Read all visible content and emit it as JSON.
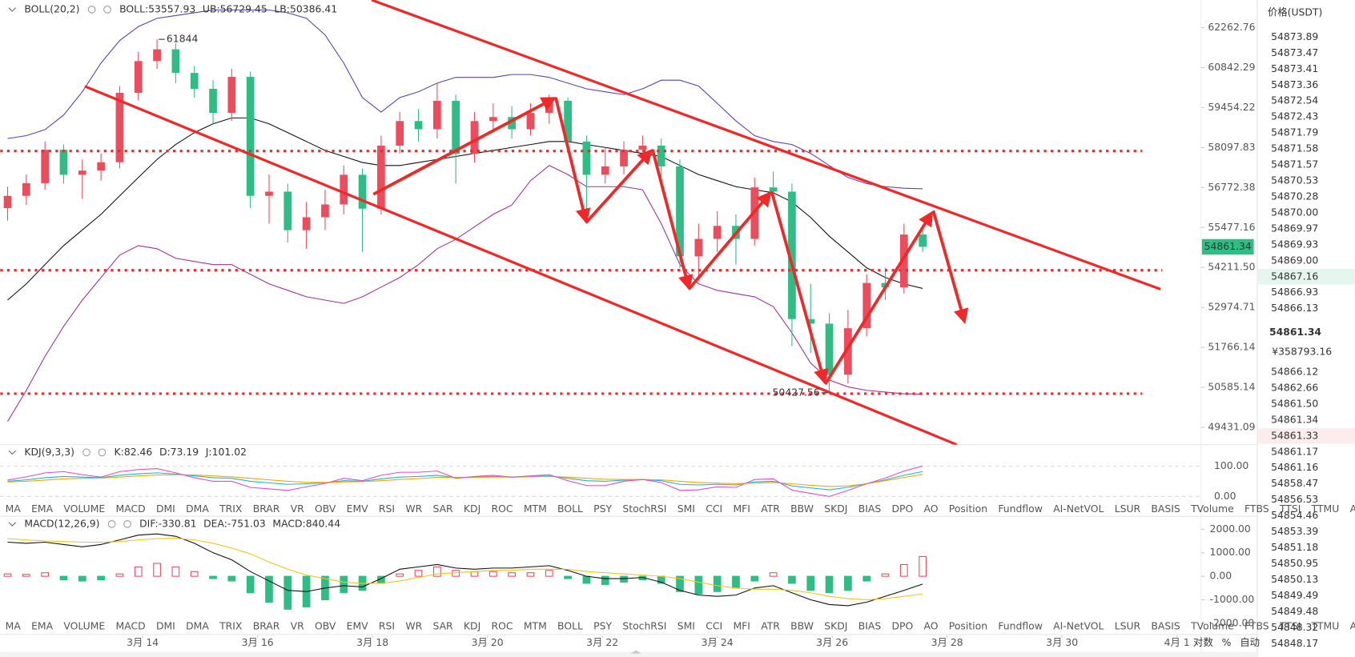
{
  "chart_data": [
    {
      "type": "candlestick",
      "indicator": "BOLL(20,2)",
      "x": [
        11.65,
        11.975,
        12.3,
        12.625,
        12.95,
        13.275,
        13.6,
        13.925,
        14.25,
        14.575,
        14.9,
        15.225,
        15.55,
        15.875,
        16.2,
        16.525,
        16.85,
        17.175,
        17.5,
        17.825,
        18.15,
        18.475,
        18.8,
        19.125,
        19.45,
        19.775,
        20.1,
        20.425,
        20.75,
        21.075,
        21.4,
        21.725,
        22.05,
        22.375,
        22.7,
        23.025,
        23.35,
        23.675,
        24.0,
        24.325,
        24.65,
        24.975,
        25.3,
        25.625,
        25.95,
        26.275,
        26.6,
        26.925,
        27.25,
        27.575
      ],
      "open": [
        56100,
        56500,
        56915,
        58023,
        57192,
        57330,
        57607,
        59963,
        61071,
        61487,
        60656,
        60101,
        59270,
        60517,
        56500,
        56638,
        55391,
        55806,
        56222,
        57192,
        56083,
        58162,
        58993,
        58716,
        59686,
        57884,
        58993,
        59131,
        58716,
        59270,
        59686,
        58300,
        57192,
        57469,
        58023,
        58162,
        57469,
        54559,
        55113,
        55529,
        55113,
        56776,
        56638,
        52620,
        52481,
        50957,
        52343,
        53728,
        53590,
        55252
      ],
      "high": [
        56800,
        57200,
        58300,
        58200,
        57700,
        57900,
        60200,
        61400,
        61844,
        61700,
        60900,
        60400,
        60800,
        60700,
        57200,
        56900,
        56300,
        56700,
        57500,
        57400,
        58500,
        59300,
        59400,
        60300,
        59900,
        59300,
        59600,
        59500,
        59600,
        59900,
        59800,
        58500,
        58100,
        58300,
        58500,
        58400,
        57700,
        55600,
        56000,
        55900,
        57100,
        57300,
        56900,
        53700,
        52800,
        52900,
        54000,
        54200,
        55600,
        55500
      ],
      "low": [
        55700,
        56200,
        56700,
        56900,
        56400,
        57000,
        57400,
        59700,
        60800,
        60300,
        59800,
        58900,
        59000,
        56100,
        55600,
        55000,
        54800,
        55400,
        55900,
        54700,
        55900,
        57900,
        58300,
        58400,
        56900,
        57600,
        58700,
        58400,
        58500,
        58900,
        58000,
        55800,
        56900,
        57200,
        57600,
        57100,
        54200,
        53800,
        54700,
        54300,
        54900,
        56300,
        51800,
        51600,
        50427.56,
        50700,
        52100,
        53200,
        53400,
        54700
      ],
      "close": [
        56500,
        56915,
        58023,
        57192,
        57330,
        57607,
        59963,
        61071,
        61487,
        60656,
        60101,
        59270,
        60517,
        56500,
        56638,
        55391,
        55806,
        56222,
        57192,
        56083,
        58162,
        58993,
        58716,
        59686,
        57884,
        58993,
        59131,
        58716,
        59270,
        59686,
        58300,
        57192,
        57469,
        58023,
        58162,
        57469,
        54559,
        55113,
        55529,
        55113,
        56776,
        56638,
        52620,
        52481,
        50957,
        52343,
        53728,
        53590,
        55252,
        54861.34
      ],
      "up_color": "#eb4d5c",
      "down_color": "#2ebd85",
      "series": [
        {
          "name": "BOLL:53557.93",
          "color": "#111111",
          "values": [
            53200,
            53700,
            54300,
            54900,
            55400,
            55900,
            56500,
            57100,
            57700,
            58200,
            58600,
            58900,
            59100,
            59100,
            58900,
            58600,
            58300,
            58000,
            57800,
            57600,
            57500,
            57500,
            57600,
            57700,
            57800,
            57900,
            58000,
            58100,
            58200,
            58300,
            58300,
            58200,
            58100,
            58000,
            57900,
            57800,
            57500,
            57200,
            57000,
            56800,
            56700,
            56600,
            56300,
            55800,
            55200,
            54700,
            54200,
            53900,
            53700,
            53557.93
          ]
        },
        {
          "name": "UB:56729.45",
          "color": "#5b3fb8",
          "values": [
            58400,
            58500,
            58700,
            59200,
            60000,
            61000,
            61800,
            62300,
            62600,
            62700,
            62800,
            62900,
            62900,
            62900,
            62900,
            62800,
            62600,
            62000,
            61000,
            59800,
            59300,
            59800,
            60000,
            60300,
            60500,
            60500,
            60500,
            60600,
            60600,
            60500,
            60300,
            60100,
            60000,
            59900,
            60100,
            60400,
            60400,
            60200,
            59600,
            59000,
            58500,
            58300,
            58200,
            57900,
            57500,
            57100,
            56900,
            56800,
            56750,
            56729.45
          ]
        },
        {
          "name": "LB:50386.41",
          "color": "#a3329a",
          "values": [
            49600,
            50500,
            51500,
            52400,
            53200,
            53900,
            54600,
            54900,
            54800,
            54500,
            54400,
            54300,
            54300,
            54000,
            53700,
            53500,
            53300,
            53200,
            53100,
            53300,
            53600,
            53900,
            54300,
            54800,
            55100,
            55500,
            55900,
            56200,
            57000,
            57500,
            57200,
            56800,
            56800,
            56800,
            56700,
            55600,
            54300,
            53700,
            53500,
            53400,
            53300,
            53000,
            52200,
            51300,
            50800,
            50600,
            50500,
            50450,
            50400,
            50386.41
          ]
        }
      ],
      "xlim": [
        11.52,
        32.42
      ],
      "ylim": [
        48941,
        63264
      ],
      "log": true,
      "yticks": [
        62262.76,
        60842.29,
        59454.22,
        58097.83,
        56772.38,
        55477.16,
        {
          "value": 54211.5,
          "label": "54211.50"
        },
        52974.71,
        51766.14,
        50585.14,
        49431.09
      ],
      "xticks": [
        {
          "value": 14,
          "label": "3月 14"
        },
        {
          "value": 16,
          "label": "3月 16"
        },
        {
          "value": 18,
          "label": "3月 18"
        },
        {
          "value": 20,
          "label": "3月 20"
        },
        {
          "value": 22,
          "label": "3月 22"
        },
        {
          "value": 24,
          "label": "3月 24"
        },
        {
          "value": 26,
          "label": "3月 26"
        },
        {
          "value": 28,
          "label": "3月 28"
        },
        {
          "value": 30,
          "label": "3月 30"
        },
        {
          "value": 32,
          "label": "4月 1"
        }
      ],
      "levels": [
        57980,
        54124,
        50402
      ],
      "level_color": "#f02828"
    },
    {
      "type": "line",
      "indicator": "KDJ(9,3,3)",
      "x": [
        11.65,
        11.975,
        12.3,
        12.625,
        12.95,
        13.275,
        13.6,
        13.925,
        14.25,
        14.575,
        14.9,
        15.225,
        15.55,
        15.875,
        16.2,
        16.525,
        16.85,
        17.175,
        17.5,
        17.825,
        18.15,
        18.475,
        18.8,
        19.125,
        19.45,
        19.775,
        20.1,
        20.425,
        20.75,
        21.075,
        21.4,
        21.725,
        22.05,
        22.375,
        22.7,
        23.025,
        23.35,
        23.675,
        24.0,
        24.325,
        24.65,
        24.975,
        25.3,
        25.625,
        25.95,
        26.275,
        26.6,
        26.925,
        27.25,
        27.575
      ],
      "series": [
        {
          "name": "K:82.46",
          "color": "#1fb5c8",
          "values": [
            50,
            55,
            62,
            66,
            64,
            62,
            70,
            75,
            78,
            74,
            68,
            62,
            60,
            50,
            45,
            40,
            42,
            45,
            52,
            50,
            58,
            64,
            66,
            70,
            62,
            64,
            66,
            64,
            66,
            68,
            60,
            52,
            50,
            54,
            56,
            52,
            40,
            38,
            40,
            38,
            48,
            50,
            35,
            28,
            22,
            30,
            42,
            55,
            70,
            82.46
          ]
        },
        {
          "name": "D:73.19",
          "color": "#f0a800",
          "values": [
            48,
            50,
            54,
            58,
            60,
            61,
            64,
            68,
            71,
            72,
            71,
            68,
            65,
            60,
            55,
            50,
            47,
            46,
            48,
            49,
            52,
            56,
            59,
            63,
            63,
            63,
            64,
            64,
            65,
            66,
            64,
            60,
            57,
            56,
            56,
            55,
            50,
            46,
            44,
            42,
            44,
            46,
            42,
            37,
            33,
            35,
            42,
            52,
            63,
            73.19
          ]
        },
        {
          "name": "J:101.02",
          "color": "#e04ad6",
          "values": [
            54,
            65,
            78,
            82,
            72,
            64,
            82,
            89,
            92,
            78,
            62,
            50,
            50,
            30,
            25,
            20,
            32,
            43,
            60,
            52,
            70,
            80,
            80,
            84,
            60,
            66,
            70,
            64,
            68,
            72,
            52,
            36,
            36,
            50,
            56,
            46,
            20,
            22,
            32,
            30,
            56,
            58,
            21,
            10,
            0,
            20,
            42,
            61,
            84,
            101.02
          ]
        }
      ],
      "xlim": [
        11.52,
        32.42
      ],
      "ylim": [
        -20,
        123
      ],
      "yticks": [
        {
          "value": 100,
          "label": "100.00"
        },
        {
          "value": 0,
          "label": "0.00"
        }
      ]
    },
    {
      "type": "macd",
      "indicator": "MACD(12,26,9)",
      "x": [
        11.65,
        11.975,
        12.3,
        12.625,
        12.95,
        13.275,
        13.6,
        13.925,
        14.25,
        14.575,
        14.9,
        15.225,
        15.55,
        15.875,
        16.2,
        16.525,
        16.85,
        17.175,
        17.5,
        17.825,
        18.15,
        18.475,
        18.8,
        19.125,
        19.45,
        19.775,
        20.1,
        20.425,
        20.75,
        21.075,
        21.4,
        21.725,
        22.05,
        22.375,
        22.7,
        23.025,
        23.35,
        23.675,
        24.0,
        24.325,
        24.65,
        24.975,
        25.3,
        25.625,
        25.95,
        26.275,
        26.6,
        26.925,
        27.25,
        27.575
      ],
      "series": [
        {
          "name": "DIF:-330.81",
          "color": "#111111",
          "values": [
            1450,
            1400,
            1450,
            1350,
            1250,
            1350,
            1550,
            1750,
            1800,
            1700,
            1400,
            1000,
            700,
            200,
            -200,
            -600,
            -650,
            -500,
            -400,
            -450,
            -100,
            300,
            400,
            500,
            350,
            300,
            350,
            350,
            400,
            450,
            250,
            0,
            -100,
            -100,
            -50,
            -250,
            -600,
            -800,
            -850,
            -800,
            -500,
            -400,
            -700,
            -1000,
            -1200,
            -1250,
            -1100,
            -850,
            -600,
            -330.81
          ]
        },
        {
          "name": "DEA:-751.03",
          "color": "#f0c419",
          "values": [
            1600,
            1550,
            1500,
            1480,
            1450,
            1450,
            1480,
            1550,
            1600,
            1620,
            1550,
            1400,
            1200,
            950,
            600,
            300,
            50,
            -100,
            -250,
            -300,
            -300,
            -200,
            -50,
            100,
            150,
            200,
            250,
            250,
            300,
            300,
            300,
            200,
            150,
            100,
            50,
            0,
            -100,
            -250,
            -400,
            -500,
            -550,
            -550,
            -600,
            -700,
            -850,
            -950,
            -1000,
            -950,
            -850,
            -751.03
          ]
        },
        {
          "name": "MACD:840.44",
          "color": "#eb4d5c",
          "down_color": "#2ebd85",
          "values": [
            100,
            80,
            150,
            -150,
            -200,
            -150,
            100,
            400,
            550,
            400,
            200,
            -100,
            -200,
            -700,
            -1100,
            -1400,
            -1300,
            -1000,
            -700,
            -600,
            -300,
            100,
            250,
            400,
            250,
            200,
            200,
            150,
            150,
            250,
            -100,
            -300,
            -350,
            -250,
            -150,
            -300,
            -650,
            -750,
            -650,
            -500,
            -200,
            150,
            -300,
            -600,
            -700,
            -600,
            -200,
            100,
            500,
            840.44
          ]
        }
      ],
      "xlim": [
        11.52,
        32.42
      ],
      "ylim": [
        -2147,
        2477
      ],
      "yticks": [
        {
          "value": 2000,
          "label": "2000.00"
        },
        {
          "value": 1000,
          "label": "1000.00"
        },
        {
          "value": 0,
          "label": "0.00"
        },
        {
          "value": -1000,
          "label": "-1000.00"
        },
        {
          "value": -2000,
          "label": "-2000.00"
        }
      ]
    }
  ],
  "toolbar": {
    "tabs": [
      "MA",
      "EMA",
      "VOLUME",
      "MACD",
      "DMI",
      "DMA",
      "TRIX",
      "BRAR",
      "VR",
      "OBV",
      "EMV",
      "RSI",
      "WR",
      "SAR",
      "KDJ",
      "ROC",
      "MTM",
      "BOLL",
      "PSY",
      "StochRSI",
      "SMI",
      "CCI",
      "MFI",
      "ATR",
      "BBW",
      "SKDJ",
      "BIAS",
      "DPO",
      "AO",
      "Position",
      "Fundflow",
      "AI-NetVOL",
      "LSUR",
      "BASIS",
      "TVolume",
      "FTBS",
      "TTSI",
      "TTMU",
      "AI-BSI"
    ],
    "muted": [
      31,
      38
    ],
    "scale_buttons": [
      "对数",
      "%",
      "自动"
    ]
  },
  "order_book": {
    "title": "价格(USDT)",
    "asks": [
      "54873.89",
      "54873.47",
      "54873.41",
      "54873.36",
      "54872.54",
      "54872.43",
      "54871.79",
      "54871.58",
      "54871.57",
      "54870.53",
      "54870.28",
      "54870.00",
      "54869.97",
      "54869.93",
      "54869.00",
      "54867.16",
      "54866.93",
      "54866.13"
    ],
    "cny": "¥358793.16",
    "bids": [
      "54866.12",
      "54862.66",
      "54861.50",
      "54861.34",
      "54861.33",
      "54861.17",
      "54861.16",
      "54858.47",
      "54856.53",
      "54854.46",
      "54853.39",
      "54851.18",
      "54850.95",
      "54850.13",
      "54849.49",
      "54849.48",
      "54848.32",
      "54848.17"
    ],
    "ask_color": "#1fa070",
    "bid_color": "#eb4d5c",
    "highlight_ask": 15,
    "highlight_bid": 4
  }
}
